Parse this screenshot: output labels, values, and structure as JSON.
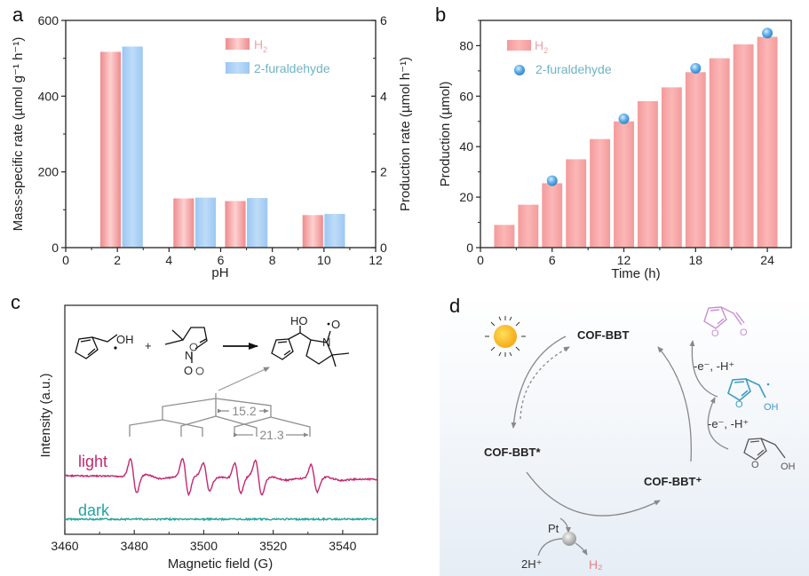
{
  "chart_data": [
    {
      "panel": "a",
      "type": "bar",
      "xlabel": "pH",
      "ylabel": "Mass-specific rate (µmol g⁻¹ h⁻¹)",
      "y2label": "Production rate (µmol h⁻¹)",
      "xlim": [
        0,
        12
      ],
      "ylim": [
        0,
        600
      ],
      "y2lim": [
        0,
        6
      ],
      "xticks": [
        "0",
        "2",
        "4",
        "6",
        "8",
        "10",
        "12"
      ],
      "yticks": [
        "0",
        "200",
        "400",
        "600"
      ],
      "y2ticks": [
        "0",
        "2",
        "4",
        "6"
      ],
      "x": [
        2,
        5,
        7,
        10
      ],
      "series": [
        {
          "name": "H2",
          "label_main": "H",
          "label_sub": "2",
          "values": [
            517,
            130,
            123,
            86
          ],
          "color": "#f29a9c",
          "text_color": "#eca3aa"
        },
        {
          "name": "2-furaldehyde",
          "values": [
            531,
            132,
            131,
            89
          ],
          "color": "#a9cff4",
          "text_color": "#6fb3c4"
        }
      ],
      "legend": "top-right"
    },
    {
      "panel": "b",
      "type": "bar",
      "xlabel": "Time (h)",
      "ylabel": "Production (µmol)",
      "xlim": [
        0,
        26
      ],
      "ylim": [
        0,
        90
      ],
      "xticks": [
        "0",
        "6",
        "12",
        "18",
        "24"
      ],
      "yticks": [
        "0",
        "20",
        "40",
        "60",
        "80"
      ],
      "series": [
        {
          "name": "H2",
          "label_main": "H",
          "label_sub": "2",
          "type": "bar",
          "x": [
            2,
            4,
            6,
            8,
            10,
            12,
            14,
            16,
            18,
            20,
            22,
            24
          ],
          "values": [
            9,
            17,
            25.5,
            35,
            43,
            50,
            58,
            63.5,
            69.5,
            75,
            80.5,
            83.5
          ],
          "color": "#f7a7a6",
          "text_color": "#eca3aa"
        },
        {
          "name": "2-furaldehyde",
          "type": "scatter",
          "x": [
            6,
            12,
            18,
            24
          ],
          "values": [
            26.5,
            51,
            71,
            85
          ],
          "color": "#4a9fdc",
          "text_color": "#6fb3c4"
        }
      ],
      "legend": "top-left"
    },
    {
      "panel": "c",
      "type": "line",
      "xlabel": "Magnetic field (G)",
      "ylabel": "Intensity (a.u.)",
      "xlim": [
        3460,
        3550
      ],
      "xticks": [
        "3460",
        "3480",
        "3500",
        "3520",
        "3540"
      ],
      "series": [
        {
          "name": "light",
          "color": "#c4286f",
          "peak_positions": [
            3479,
            3494,
            3500,
            3509,
            3515,
            3531
          ]
        },
        {
          "name": "dark",
          "color": "#25a3a0"
        }
      ],
      "annotations": {
        "splitting_1": "15.2",
        "splitting_2": "21.3"
      },
      "scheme": {
        "reactant_1_oh": "OH",
        "plus": "+",
        "product_ho": "HO",
        "n": "N",
        "o": "O"
      }
    }
  ],
  "panels": {
    "a": "a",
    "b": "b",
    "c": "c",
    "d": "d"
  },
  "diagram": {
    "cof": "COF-BBT",
    "cof_excited": "COF-BBT*",
    "cof_plus": "COF-BBT⁺",
    "step_label_1": "-e⁻, -H⁺",
    "step_label_2": "-e⁻, -H⁺",
    "pt": "Pt",
    "protons": "2H⁺",
    "h2": "H₂",
    "oh_radical": "OH",
    "oh_alcohol": "OH",
    "o_aldehyde": "O",
    "colors": {
      "aldehyde": "#c98fd3",
      "radical": "#3c9cc0",
      "alcohol": "#555555",
      "h2": "#e8808a",
      "sun": "#f7b21b"
    }
  }
}
